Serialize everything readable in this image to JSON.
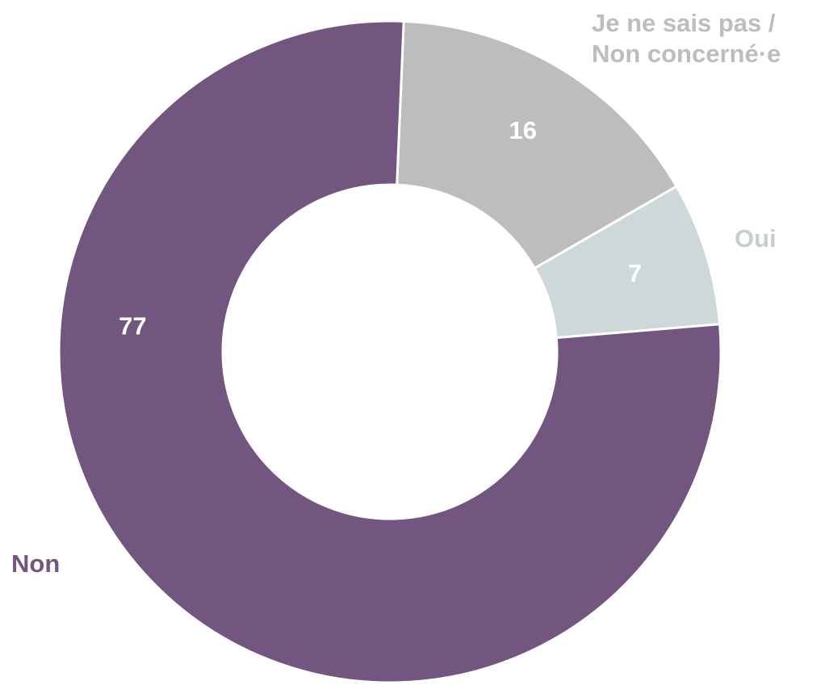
{
  "chart_data": {
    "type": "donut",
    "categories": [
      "Je ne sais pas / Non concerné·e",
      "Oui",
      "Non"
    ],
    "values": [
      16,
      7,
      77
    ],
    "colors": [
      "#bdbdbd",
      "#cfd8d8",
      "#72567f"
    ],
    "label_colors": [
      "#bdbdbd",
      "#c4d0d0",
      "#72567f"
    ]
  }
}
